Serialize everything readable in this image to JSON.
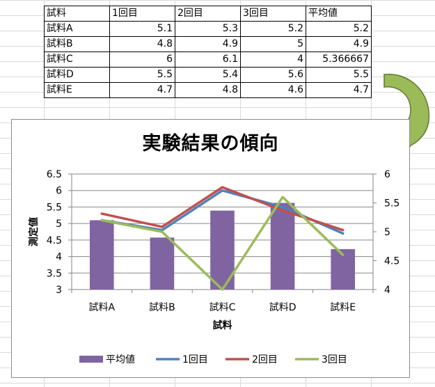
{
  "table": {
    "headers": [
      "試料",
      "1回目",
      "2回目",
      "3回目",
      "平均値"
    ],
    "rows": [
      [
        "試料A",
        "5.1",
        "5.3",
        "5.2",
        "5.2"
      ],
      [
        "試料B",
        "4.8",
        "4.9",
        "5",
        "4.9"
      ],
      [
        "試料C",
        "6",
        "6.1",
        "4",
        "5.366667"
      ],
      [
        "試料D",
        "5.5",
        "5.4",
        "5.6",
        "5.5"
      ],
      [
        "試料E",
        "4.7",
        "4.8",
        "4.6",
        "4.7"
      ]
    ]
  },
  "chart_data": {
    "type": "bar",
    "title": "実験結果の傾向",
    "xlabel": "試料",
    "ylabel": "測定値",
    "categories": [
      "試料A",
      "試料B",
      "試料C",
      "試料D",
      "試料E"
    ],
    "ylim": [
      3,
      6.5
    ],
    "yticks": [
      "3",
      "3.5",
      "4",
      "4.5",
      "5",
      "5.5",
      "6",
      "6.5"
    ],
    "y2lim": [
      4,
      6
    ],
    "y2ticks": [
      "4",
      "4.5",
      "5",
      "5.5",
      "6"
    ],
    "grid": true,
    "legend_position": "bottom",
    "series": [
      {
        "name": "平均値",
        "kind": "bar",
        "axis": "right",
        "color": "#8064a2",
        "values": [
          5.2,
          4.9,
          5.366667,
          5.5,
          4.7
        ]
      },
      {
        "name": "1回目",
        "kind": "line",
        "axis": "left",
        "color": "#4f81bd",
        "values": [
          5.1,
          4.8,
          6,
          5.5,
          4.7
        ]
      },
      {
        "name": "2回目",
        "kind": "line",
        "axis": "left",
        "color": "#c0504d",
        "values": [
          5.3,
          4.9,
          6.1,
          5.4,
          4.8
        ]
      },
      {
        "name": "3回目",
        "kind": "line",
        "axis": "right",
        "color": "#9bbb59",
        "values": [
          5.2,
          5,
          4,
          5.6,
          4.6
        ]
      }
    ]
  },
  "arrow": {
    "color": "#9bbb59"
  }
}
